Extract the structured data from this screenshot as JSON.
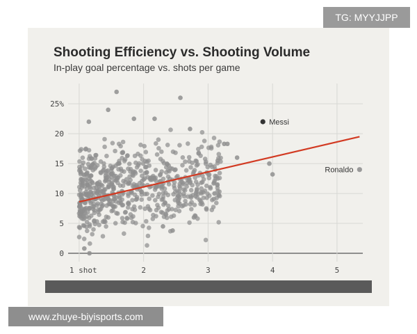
{
  "watermark_top": "TG: MYYJJPP",
  "watermark_bottom": "www.zhuye-biyisports.com",
  "chart_data": {
    "type": "scatter",
    "title": "Shooting Efficiency vs. Shooting Volume",
    "subtitle": "In-play goal percentage vs. shots per game",
    "xlabel": "",
    "ylabel": "",
    "xlim": [
      0.85,
      5.4
    ],
    "ylim": [
      0,
      27
    ],
    "x_ticks": [
      {
        "value": 1,
        "label": "1 shot"
      },
      {
        "value": 2,
        "label": "2"
      },
      {
        "value": 3,
        "label": "3"
      },
      {
        "value": 4,
        "label": "4"
      },
      {
        "value": 5,
        "label": "5"
      }
    ],
    "y_ticks": [
      {
        "value": 0,
        "label": "0"
      },
      {
        "value": 5,
        "label": "5"
      },
      {
        "value": 10,
        "label": "10"
      },
      {
        "value": 15,
        "label": "15"
      },
      {
        "value": 20,
        "label": "20"
      },
      {
        "value": 25,
        "label": "25%"
      }
    ],
    "grid": true,
    "trend_line": {
      "x": [
        1.0,
        5.35
      ],
      "y": [
        8.6,
        19.5
      ],
      "color": "#d23a22"
    },
    "point_color": "#8f8f8f",
    "highlight_color": "#333333",
    "highlighted": [
      {
        "label": "Messi",
        "x": 3.85,
        "y": 22.0,
        "label_side": "right"
      },
      {
        "label": "Ronaldo",
        "x": 5.35,
        "y": 14.0,
        "label_side": "left"
      }
    ],
    "notable_points": [
      {
        "x": 1.58,
        "y": 27.0
      },
      {
        "x": 2.57,
        "y": 26.0
      },
      {
        "x": 1.45,
        "y": 24.0
      },
      {
        "x": 3.95,
        "y": 15.0
      },
      {
        "x": 4.0,
        "y": 13.2
      },
      {
        "x": 3.45,
        "y": 16.0
      },
      {
        "x": 3.25,
        "y": 18.3
      },
      {
        "x": 3.3,
        "y": 18.3
      },
      {
        "x": 2.72,
        "y": 20.8
      },
      {
        "x": 2.17,
        "y": 22.5
      },
      {
        "x": 1.85,
        "y": 22.5
      },
      {
        "x": 1.15,
        "y": 22.0
      },
      {
        "x": 1.16,
        "y": 0.0
      },
      {
        "x": 1.08,
        "y": 0.8
      },
      {
        "x": 2.78,
        "y": 6.0
      },
      {
        "x": 2.45,
        "y": 3.8
      },
      {
        "x": 3.1,
        "y": 10.0
      },
      {
        "x": 2.98,
        "y": 13.5
      },
      {
        "x": 3.15,
        "y": 15.5
      },
      {
        "x": 2.3,
        "y": 4.5
      }
    ],
    "cloud": {
      "count": 700,
      "x_range": [
        1.0,
        3.2
      ],
      "y_range": [
        1,
        21
      ]
    }
  }
}
